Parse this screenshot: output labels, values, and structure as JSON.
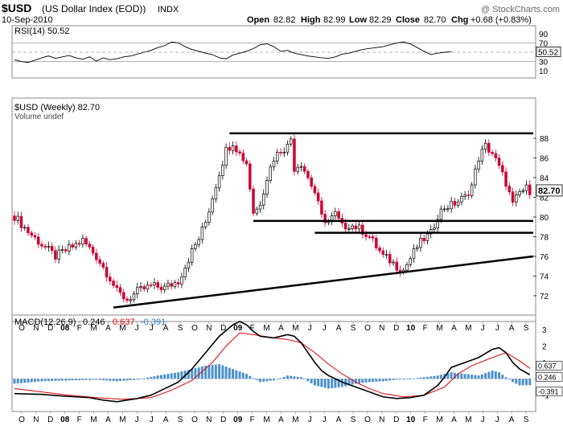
{
  "header": {
    "symbol": "$USD",
    "name": "(US Dollar Index (EOD))",
    "exchange": "INDX",
    "date": "10-Sep-2010",
    "copyright": "@ StockCharts.com",
    "open_label": "Open",
    "open": "82.82",
    "high_label": "High",
    "high": "82.99",
    "low_label": "Low",
    "low": "82.29",
    "close_label": "Close",
    "close": "82.70",
    "chg_label": "Chg",
    "chg": "+0.68 (+0.83%)"
  },
  "colors": {
    "up": "#000000",
    "down": "#cc0033",
    "rsi_overbought_fill": "#4a8a4a",
    "rsi_oversold_fill": "#b05050",
    "macd_line": "#000000",
    "signal_line": "#dd0000",
    "histogram": "#2f7fc1",
    "trendline": "#000000"
  },
  "chart_data": [
    {
      "panel": "rsi",
      "type": "line",
      "legend": "RSI(14) 50.52",
      "ylim": [
        0,
        100
      ],
      "yticks": [
        10,
        30,
        50,
        70,
        90
      ],
      "reference_lines": [
        30,
        50,
        70
      ],
      "last_value": "50.52",
      "points_weekly_index": [
        [
          0,
          34
        ],
        [
          2,
          30
        ],
        [
          4,
          28
        ],
        [
          6,
          33
        ],
        [
          8,
          38
        ],
        [
          10,
          42
        ],
        [
          12,
          37
        ],
        [
          14,
          40
        ],
        [
          16,
          43
        ],
        [
          18,
          38
        ],
        [
          20,
          35
        ],
        [
          22,
          40
        ],
        [
          24,
          31
        ],
        [
          26,
          38
        ],
        [
          28,
          34
        ],
        [
          30,
          36
        ],
        [
          32,
          40
        ],
        [
          34,
          42
        ],
        [
          36,
          46
        ],
        [
          38,
          50
        ],
        [
          40,
          54
        ],
        [
          42,
          60
        ],
        [
          44,
          64
        ],
        [
          46,
          72
        ],
        [
          48,
          70
        ],
        [
          50,
          62
        ],
        [
          52,
          56
        ],
        [
          54,
          52
        ],
        [
          56,
          48
        ],
        [
          58,
          45
        ],
        [
          60,
          38
        ],
        [
          62,
          36
        ],
        [
          64,
          44
        ],
        [
          66,
          48
        ],
        [
          68,
          52
        ],
        [
          70,
          58
        ],
        [
          72,
          66
        ],
        [
          74,
          68
        ],
        [
          76,
          62
        ],
        [
          78,
          52
        ],
        [
          80,
          54
        ],
        [
          82,
          48
        ],
        [
          84,
          45
        ],
        [
          86,
          42
        ],
        [
          88,
          40
        ],
        [
          90,
          38
        ],
        [
          92,
          37
        ],
        [
          94,
          40
        ],
        [
          96,
          46
        ],
        [
          98,
          48
        ],
        [
          100,
          52
        ],
        [
          102,
          56
        ],
        [
          104,
          58
        ],
        [
          106,
          60
        ],
        [
          108,
          62
        ],
        [
          110,
          66
        ],
        [
          112,
          70
        ],
        [
          114,
          72
        ],
        [
          116,
          68
        ],
        [
          118,
          60
        ],
        [
          120,
          52
        ],
        [
          122,
          45
        ],
        [
          124,
          48
        ],
        [
          126,
          50
        ],
        [
          128,
          51
        ]
      ]
    },
    {
      "panel": "price",
      "type": "candlestick",
      "legend": "$USD (Weekly) 82.70",
      "volume_legend": "Volume undef",
      "yticks": [
        72,
        74,
        76,
        78,
        80,
        82,
        84,
        86,
        88
      ],
      "last_price": "82.70",
      "x_labels": [
        "O",
        "N",
        "D",
        "08",
        "F",
        "M",
        "A",
        "M",
        "J",
        "J",
        "A",
        "S",
        "O",
        "N",
        "D",
        "09",
        "F",
        "M",
        "A",
        "M",
        "J",
        "J",
        "A",
        "S",
        "O",
        "N",
        "D",
        "10",
        "F",
        "M",
        "A",
        "M",
        "J",
        "J",
        "A",
        "S"
      ],
      "bold_x_labels": [
        "08",
        "09",
        "10"
      ],
      "close_path": [
        [
          0,
          80.1
        ],
        [
          4,
          78.5
        ],
        [
          8,
          77.2
        ],
        [
          12,
          76.0
        ],
        [
          16,
          76.8
        ],
        [
          20,
          77.6
        ],
        [
          24,
          76.0
        ],
        [
          28,
          73.8
        ],
        [
          30,
          72.4
        ],
        [
          33,
          71.6
        ],
        [
          36,
          72.4
        ],
        [
          40,
          73.0
        ],
        [
          44,
          72.8
        ],
        [
          48,
          73.5
        ],
        [
          52,
          76.5
        ],
        [
          54,
          77.8
        ],
        [
          56,
          79.5
        ],
        [
          60,
          84.5
        ],
        [
          62,
          86.8
        ],
        [
          64,
          87.6
        ],
        [
          66,
          86.4
        ],
        [
          68,
          85.5
        ],
        [
          70,
          80.5
        ],
        [
          71,
          80.8
        ],
        [
          72,
          81.5
        ],
        [
          74,
          84.0
        ],
        [
          76,
          86.0
        ],
        [
          78,
          86.8
        ],
        [
          80,
          87.2
        ],
        [
          81,
          88.0
        ],
        [
          82,
          85.0
        ],
        [
          84,
          85.5
        ],
        [
          86,
          84.0
        ],
        [
          88,
          82.5
        ],
        [
          90,
          80.0
        ],
        [
          92,
          79.5
        ],
        [
          94,
          80.3
        ],
        [
          96,
          79.0
        ],
        [
          98,
          79.2
        ],
        [
          100,
          79.0
        ],
        [
          102,
          78.6
        ],
        [
          104,
          78.0
        ],
        [
          106,
          77.0
        ],
        [
          108,
          76.0
        ],
        [
          110,
          75.6
        ],
        [
          112,
          75.0
        ],
        [
          114,
          74.6
        ],
        [
          116,
          75.8
        ],
        [
          118,
          77.0
        ],
        [
          120,
          77.8
        ],
        [
          122,
          78.3
        ],
        [
          124,
          80.2
        ],
        [
          126,
          81.0
        ],
        [
          128,
          81.2
        ],
        [
          130,
          81.6
        ],
        [
          132,
          82.0
        ],
        [
          134,
          83.2
        ],
        [
          136,
          86.0
        ],
        [
          138,
          87.2
        ],
        [
          140,
          86.5
        ],
        [
          142,
          85.0
        ],
        [
          144,
          83.5
        ],
        [
          146,
          81.2
        ],
        [
          148,
          82.5
        ],
        [
          150,
          82.9
        ],
        [
          151,
          82.7
        ]
      ],
      "annotations": [
        {
          "type": "horizontal",
          "price": 88.5,
          "from_week": 63,
          "to_week": 152
        },
        {
          "type": "horizontal",
          "price": 79.6,
          "from_week": 70,
          "to_week": 152
        },
        {
          "type": "horizontal",
          "price": 78.4,
          "from_week": 88,
          "to_week": 152
        },
        {
          "type": "trend",
          "from": [
            29,
            70.8
          ],
          "to": [
            152,
            76.0
          ]
        }
      ]
    },
    {
      "panel": "macd",
      "type": "line+histogram",
      "legend": "MACD(12,26,9)",
      "macd_value": "0.246",
      "signal_value": "0.637",
      "histogram_value": "-0.391",
      "ylim": [
        -1.8,
        3.6
      ],
      "yticks": [
        3,
        2,
        1,
        -1
      ],
      "right_labels": [
        "0.637",
        "0.246",
        "-0.391"
      ],
      "macd_points": [
        [
          0,
          -0.9
        ],
        [
          8,
          -0.95
        ],
        [
          14,
          -1.05
        ],
        [
          18,
          -1.1
        ],
        [
          22,
          -1.15
        ],
        [
          26,
          -1.3
        ],
        [
          30,
          -1.4
        ],
        [
          36,
          -1.2
        ],
        [
          40,
          -1.0
        ],
        [
          44,
          -0.6
        ],
        [
          48,
          -0.2
        ],
        [
          52,
          0.6
        ],
        [
          56,
          1.6
        ],
        [
          60,
          2.6
        ],
        [
          64,
          3.3
        ],
        [
          66,
          3.5
        ],
        [
          68,
          3.3
        ],
        [
          70,
          2.9
        ],
        [
          72,
          2.6
        ],
        [
          76,
          2.5
        ],
        [
          80,
          2.7
        ],
        [
          82,
          2.6
        ],
        [
          84,
          2.2
        ],
        [
          86,
          1.6
        ],
        [
          88,
          1.0
        ],
        [
          90,
          0.5
        ],
        [
          92,
          0.2
        ],
        [
          96,
          -0.2
        ],
        [
          100,
          -0.5
        ],
        [
          104,
          -0.8
        ],
        [
          108,
          -1.1
        ],
        [
          112,
          -1.2
        ],
        [
          116,
          -1.15
        ],
        [
          120,
          -1.0
        ],
        [
          124,
          -0.4
        ],
        [
          126,
          0.1
        ],
        [
          128,
          0.7
        ],
        [
          132,
          1.0
        ],
        [
          136,
          1.3
        ],
        [
          140,
          1.8
        ],
        [
          142,
          1.9
        ],
        [
          144,
          1.6
        ],
        [
          146,
          1.0
        ],
        [
          148,
          0.6
        ],
        [
          151,
          0.25
        ]
      ],
      "signal_points": [
        [
          0,
          -0.6
        ],
        [
          8,
          -0.8
        ],
        [
          16,
          -1.0
        ],
        [
          24,
          -1.15
        ],
        [
          32,
          -1.25
        ],
        [
          40,
          -1.15
        ],
        [
          46,
          -0.7
        ],
        [
          52,
          -0.1
        ],
        [
          58,
          1.0
        ],
        [
          62,
          2.0
        ],
        [
          66,
          2.8
        ],
        [
          70,
          2.7
        ],
        [
          76,
          2.5
        ],
        [
          80,
          2.4
        ],
        [
          84,
          2.2
        ],
        [
          88,
          1.6
        ],
        [
          92,
          0.9
        ],
        [
          96,
          0.3
        ],
        [
          100,
          -0.2
        ],
        [
          104,
          -0.6
        ],
        [
          108,
          -0.9
        ],
        [
          114,
          -1.1
        ],
        [
          120,
          -1.0
        ],
        [
          126,
          -0.5
        ],
        [
          130,
          0.3
        ],
        [
          134,
          0.8
        ],
        [
          140,
          1.3
        ],
        [
          144,
          1.6
        ],
        [
          148,
          1.1
        ],
        [
          151,
          0.64
        ]
      ],
      "histogram_points": [
        [
          0,
          -0.3
        ],
        [
          8,
          -0.15
        ],
        [
          16,
          -0.1
        ],
        [
          24,
          -0.05
        ],
        [
          30,
          -0.15
        ],
        [
          36,
          -0.05
        ],
        [
          42,
          0.2
        ],
        [
          48,
          0.4
        ],
        [
          52,
          0.6
        ],
        [
          56,
          0.8
        ],
        [
          60,
          0.9
        ],
        [
          64,
          0.6
        ],
        [
          68,
          0.3
        ],
        [
          72,
          -0.2
        ],
        [
          76,
          -0.1
        ],
        [
          80,
          0.2
        ],
        [
          84,
          0.1
        ],
        [
          88,
          -0.4
        ],
        [
          92,
          -0.6
        ],
        [
          96,
          -0.5
        ],
        [
          100,
          -0.3
        ],
        [
          104,
          -0.2
        ],
        [
          108,
          -0.15
        ],
        [
          112,
          -0.05
        ],
        [
          116,
          0.0
        ],
        [
          120,
          0.1
        ],
        [
          124,
          0.2
        ],
        [
          128,
          0.4
        ],
        [
          132,
          0.3
        ],
        [
          136,
          0.2
        ],
        [
          140,
          0.5
        ],
        [
          142,
          0.4
        ],
        [
          144,
          0.1
        ],
        [
          146,
          -0.2
        ],
        [
          148,
          -0.4
        ],
        [
          151,
          -0.39
        ]
      ]
    }
  ]
}
